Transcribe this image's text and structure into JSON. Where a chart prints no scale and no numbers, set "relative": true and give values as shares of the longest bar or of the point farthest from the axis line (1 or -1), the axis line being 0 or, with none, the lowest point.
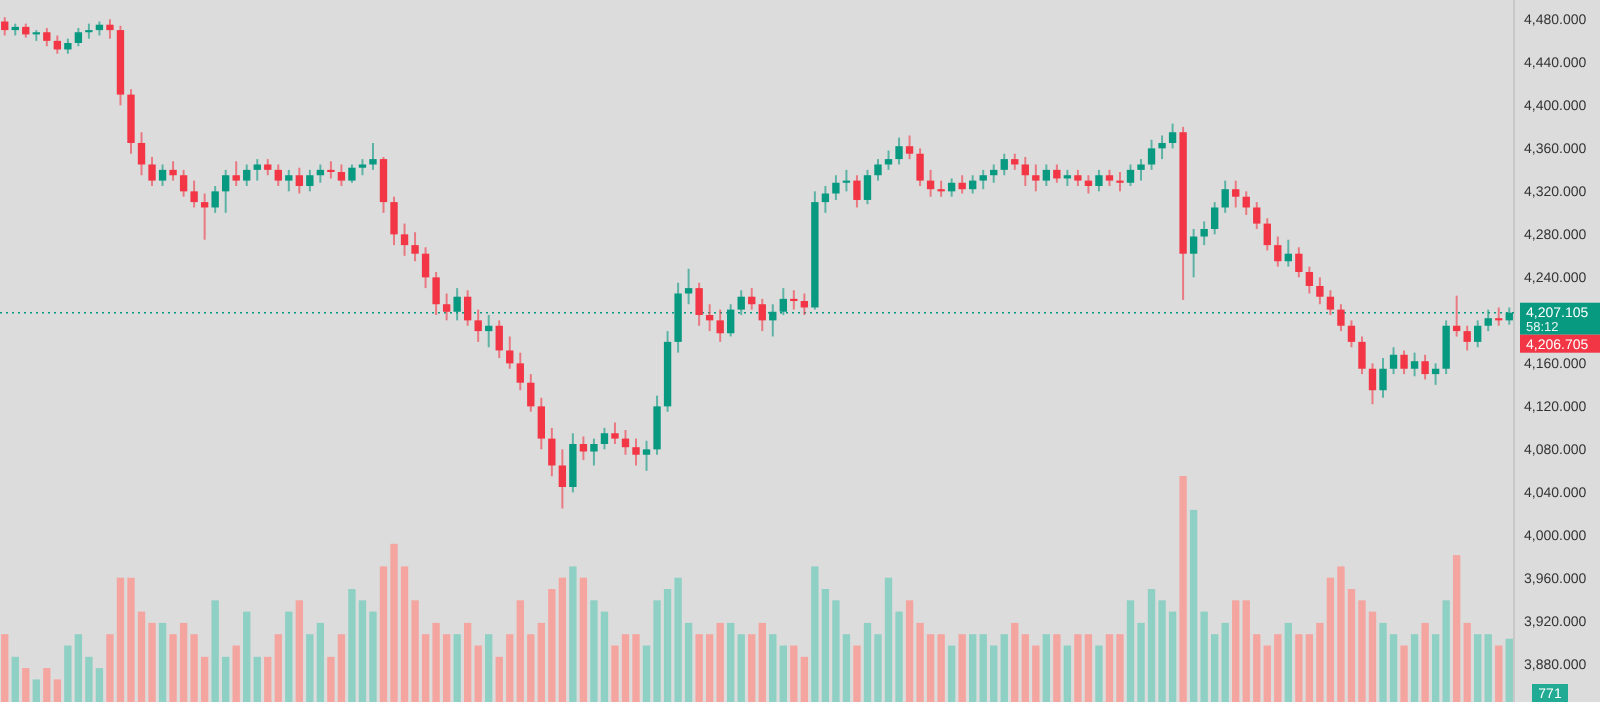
{
  "chart_data": [
    {
      "type": "candlestick",
      "categories": [
        null,
        null,
        null,
        null,
        null,
        null,
        null,
        null,
        null,
        null,
        null,
        null,
        null,
        null,
        null,
        null,
        null,
        null,
        null,
        null,
        null,
        null,
        null,
        null,
        null,
        null,
        null,
        null,
        null,
        null,
        null,
        null,
        null,
        null,
        null,
        null,
        null,
        null,
        null,
        null,
        null,
        null,
        null,
        null,
        null,
        null,
        null,
        null,
        null,
        null,
        null,
        null,
        null,
        null,
        null,
        null,
        null,
        null,
        null,
        null,
        null,
        null,
        null,
        null,
        null,
        null,
        null,
        null,
        null,
        null,
        null,
        null,
        null,
        null,
        null,
        null,
        null,
        null,
        null,
        null,
        null,
        null,
        null,
        null,
        null,
        null,
        null,
        null,
        null,
        null,
        null,
        null,
        null,
        null,
        null,
        null,
        null,
        null,
        null,
        null,
        null,
        null,
        null,
        null,
        null,
        null,
        null,
        null,
        null,
        null,
        null,
        null,
        null,
        null,
        null,
        null,
        null,
        null,
        null,
        null,
        null,
        null,
        null,
        null,
        null,
        null,
        null,
        null,
        null,
        null,
        null,
        null,
        null,
        null,
        null,
        null,
        null,
        null,
        null,
        null,
        null,
        null,
        null,
        null
      ],
      "colors": [
        "#f23645",
        "#089981",
        "#f23645",
        "#089981",
        "#f23645",
        "#f23645",
        "#089981",
        "#089981",
        "#089981",
        "#089981",
        "#f23645",
        "#f23645",
        "#f23645",
        "#f23645",
        "#f23645",
        "#089981",
        "#f23645",
        "#f23645",
        "#f23645",
        "#f23645",
        "#089981",
        "#089981",
        "#f23645",
        "#089981",
        "#089981",
        "#f23645",
        "#f23645",
        "#089981",
        "#f23645",
        "#089981",
        "#089981",
        "#f23645",
        "#f23645",
        "#089981",
        "#089981",
        "#089981",
        "#f23645",
        "#f23645",
        "#f23645",
        "#f23645",
        "#f23645",
        "#f23645",
        "#f23645",
        "#089981",
        "#f23645",
        "#f23645",
        "#089981",
        "#f23645",
        "#f23645",
        "#f23645",
        "#f23645",
        "#f23645",
        "#f23645",
        "#f23645",
        "#089981",
        "#f23645",
        "#089981",
        "#089981",
        "#f23645",
        "#f23645",
        "#f23645",
        "#089981",
        "#089981",
        "#089981",
        "#089981",
        "#089981",
        "#f23645",
        "#f23645",
        "#f23645",
        "#089981",
        "#089981",
        "#f23645",
        "#f23645",
        "#089981",
        "#089981",
        "#f23645",
        "#f23645",
        "#089981",
        "#089981",
        "#089981",
        "#089981",
        "#f23645",
        "#089981",
        "#089981",
        "#089981",
        "#089981",
        "#f23645",
        "#f23645",
        "#f23645",
        "#f23645",
        "#089981",
        "#f23645",
        "#089981",
        "#089981",
        "#089981",
        "#089981",
        "#f23645",
        "#f23645",
        "#f23645",
        "#089981",
        "#f23645",
        "#089981",
        "#f23645",
        "#f23645",
        "#089981",
        "#f23645",
        "#f23645",
        "#089981",
        "#089981",
        "#089981",
        "#089981",
        "#089981",
        "#f23645",
        "#089981",
        "#089981",
        "#089981",
        "#089981",
        "#f23645",
        "#f23645",
        "#f23645",
        "#f23645",
        "#f23645",
        "#089981",
        "#f23645",
        "#f23645",
        "#f23645",
        "#f23645",
        "#f23645",
        "#f23645",
        "#f23645",
        "#f23645",
        "#089981",
        "#089981",
        "#f23645",
        "#089981",
        "#f23645",
        "#089981",
        "#089981",
        "#f23645",
        "#f23645",
        "#089981",
        "#089981",
        "#f23645",
        "#089981"
      ],
      "ohlc": [
        [
          4478,
          4482,
          4465,
          4470
        ],
        [
          4470,
          4476,
          4465,
          4473
        ],
        [
          4473,
          4476,
          4463,
          4466
        ],
        [
          4466,
          4470,
          4460,
          4468
        ],
        [
          4468,
          4472,
          4455,
          4460
        ],
        [
          4460,
          4465,
          4448,
          4452
        ],
        [
          4452,
          4462,
          4448,
          4458
        ],
        [
          4458,
          4472,
          4455,
          4468
        ],
        [
          4468,
          4476,
          4462,
          4470
        ],
        [
          4470,
          4478,
          4465,
          4475
        ],
        [
          4475,
          4480,
          4462,
          4470
        ],
        [
          4470,
          4474,
          4400,
          4410
        ],
        [
          4410,
          4415,
          4355,
          4365
        ],
        [
          4365,
          4375,
          4335,
          4345
        ],
        [
          4345,
          4352,
          4325,
          4330
        ],
        [
          4330,
          4345,
          4325,
          4340
        ],
        [
          4340,
          4348,
          4330,
          4335
        ],
        [
          4335,
          4340,
          4315,
          4320
        ],
        [
          4320,
          4330,
          4305,
          4310
        ],
        [
          4310,
          4318,
          4275,
          4305
        ],
        [
          4305,
          4325,
          4300,
          4320
        ],
        [
          4320,
          4340,
          4300,
          4335
        ],
        [
          4335,
          4348,
          4325,
          4330
        ],
        [
          4330,
          4345,
          4325,
          4340
        ],
        [
          4340,
          4350,
          4330,
          4345
        ],
        [
          4345,
          4350,
          4335,
          4340
        ],
        [
          4340,
          4345,
          4325,
          4330
        ],
        [
          4330,
          4340,
          4320,
          4335
        ],
        [
          4335,
          4342,
          4318,
          4325
        ],
        [
          4325,
          4340,
          4320,
          4335
        ],
        [
          4335,
          4345,
          4328,
          4340
        ],
        [
          4340,
          4348,
          4332,
          4338
        ],
        [
          4338,
          4345,
          4325,
          4330
        ],
        [
          4330,
          4345,
          4328,
          4342
        ],
        [
          4342,
          4350,
          4335,
          4345
        ],
        [
          4345,
          4365,
          4340,
          4350
        ],
        [
          4350,
          4352,
          4300,
          4310
        ],
        [
          4310,
          4315,
          4270,
          4280
        ],
        [
          4280,
          4290,
          4260,
          4270
        ],
        [
          4270,
          4282,
          4255,
          4262
        ],
        [
          4262,
          4268,
          4230,
          4240
        ],
        [
          4240,
          4245,
          4205,
          4215
        ],
        [
          4215,
          4225,
          4200,
          4208
        ],
        [
          4208,
          4230,
          4200,
          4222
        ],
        [
          4222,
          4228,
          4195,
          4200
        ],
        [
          4200,
          4210,
          4180,
          4190
        ],
        [
          4190,
          4205,
          4175,
          4195
        ],
        [
          4195,
          4200,
          4165,
          4172
        ],
        [
          4172,
          4185,
          4155,
          4160
        ],
        [
          4160,
          4170,
          4135,
          4142
        ],
        [
          4142,
          4150,
          4115,
          4120
        ],
        [
          4120,
          4128,
          4080,
          4090
        ],
        [
          4090,
          4100,
          4055,
          4065
        ],
        [
          4065,
          4080,
          4025,
          4045
        ],
        [
          4045,
          4095,
          4040,
          4085
        ],
        [
          4085,
          4092,
          4070,
          4078
        ],
        [
          4078,
          4090,
          4065,
          4085
        ],
        [
          4085,
          4100,
          4080,
          4095
        ],
        [
          4095,
          4105,
          4085,
          4090
        ],
        [
          4090,
          4098,
          4075,
          4082
        ],
        [
          4082,
          4090,
          4065,
          4075
        ],
        [
          4075,
          4088,
          4060,
          4080
        ],
        [
          4080,
          4130,
          4075,
          4120
        ],
        [
          4120,
          4190,
          4115,
          4180
        ],
        [
          4180,
          4235,
          4170,
          4225
        ],
        [
          4225,
          4248,
          4215,
          4230
        ],
        [
          4230,
          4235,
          4195,
          4205
        ],
        [
          4205,
          4215,
          4190,
          4200
        ],
        [
          4200,
          4210,
          4180,
          4188
        ],
        [
          4188,
          4215,
          4185,
          4210
        ],
        [
          4210,
          4228,
          4205,
          4222
        ],
        [
          4222,
          4230,
          4210,
          4215
        ],
        [
          4215,
          4220,
          4190,
          4200
        ],
        [
          4200,
          4215,
          4185,
          4208
        ],
        [
          4208,
          4230,
          4205,
          4220
        ],
        [
          4220,
          4228,
          4210,
          4218
        ],
        [
          4218,
          4225,
          4205,
          4212
        ],
        [
          4212,
          4320,
          4210,
          4310
        ],
        [
          4310,
          4325,
          4300,
          4318
        ],
        [
          4318,
          4335,
          4312,
          4328
        ],
        [
          4328,
          4340,
          4320,
          4330
        ],
        [
          4330,
          4335,
          4305,
          4312
        ],
        [
          4312,
          4340,
          4308,
          4335
        ],
        [
          4335,
          4350,
          4330,
          4345
        ],
        [
          4345,
          4358,
          4340,
          4350
        ],
        [
          4350,
          4370,
          4345,
          4362
        ],
        [
          4362,
          4372,
          4350,
          4355
        ],
        [
          4355,
          4360,
          4325,
          4330
        ],
        [
          4330,
          4340,
          4315,
          4322
        ],
        [
          4322,
          4330,
          4315,
          4320
        ],
        [
          4320,
          4332,
          4315,
          4328
        ],
        [
          4328,
          4335,
          4318,
          4322
        ],
        [
          4322,
          4335,
          4318,
          4330
        ],
        [
          4330,
          4340,
          4322,
          4335
        ],
        [
          4335,
          4345,
          4328,
          4340
        ],
        [
          4340,
          4355,
          4335,
          4350
        ],
        [
          4350,
          4355,
          4340,
          4345
        ],
        [
          4345,
          4352,
          4325,
          4335
        ],
        [
          4335,
          4345,
          4320,
          4330
        ],
        [
          4330,
          4345,
          4325,
          4340
        ],
        [
          4340,
          4345,
          4328,
          4332
        ],
        [
          4332,
          4340,
          4325,
          4335
        ],
        [
          4335,
          4340,
          4325,
          4330
        ],
        [
          4330,
          4335,
          4318,
          4325
        ],
        [
          4325,
          4340,
          4320,
          4335
        ],
        [
          4335,
          4340,
          4325,
          4330
        ],
        [
          4330,
          4338,
          4320,
          4328
        ],
        [
          4328,
          4345,
          4325,
          4340
        ],
        [
          4340,
          4350,
          4330,
          4345
        ],
        [
          4345,
          4368,
          4340,
          4360
        ],
        [
          4360,
          4372,
          4350,
          4365
        ],
        [
          4365,
          4383,
          4360,
          4375
        ],
        [
          4375,
          4380,
          4219,
          4262
        ],
        [
          4262,
          4285,
          4240,
          4278
        ],
        [
          4278,
          4292,
          4270,
          4285
        ],
        [
          4285,
          4310,
          4280,
          4305
        ],
        [
          4305,
          4330,
          4300,
          4322
        ],
        [
          4322,
          4330,
          4305,
          4315
        ],
        [
          4315,
          4320,
          4298,
          4305
        ],
        [
          4305,
          4310,
          4285,
          4290
        ],
        [
          4290,
          4295,
          4265,
          4270
        ],
        [
          4270,
          4278,
          4250,
          4255
        ],
        [
          4255,
          4275,
          4250,
          4262
        ],
        [
          4262,
          4268,
          4240,
          4245
        ],
        [
          4245,
          4250,
          4225,
          4232
        ],
        [
          4232,
          4240,
          4215,
          4222
        ],
        [
          4222,
          4228,
          4205,
          4210
        ],
        [
          4210,
          4215,
          4190,
          4195
        ],
        [
          4195,
          4200,
          4175,
          4180
        ],
        [
          4180,
          4185,
          4150,
          4155
        ],
        [
          4155,
          4160,
          4122,
          4135
        ],
        [
          4135,
          4165,
          4128,
          4155
        ],
        [
          4155,
          4175,
          4150,
          4168
        ],
        [
          4168,
          4172,
          4150,
          4155
        ],
        [
          4155,
          4170,
          4148,
          4162
        ],
        [
          4162,
          4168,
          4145,
          4150
        ],
        [
          4150,
          4160,
          4140,
          4155
        ],
        [
          4155,
          4200,
          4150,
          4195
        ],
        [
          4195,
          4223,
          4185,
          4190
        ],
        [
          4190,
          4195,
          4172,
          4180
        ],
        [
          4180,
          4200,
          4175,
          4195
        ],
        [
          4195,
          4210,
          4190,
          4202
        ],
        [
          4202,
          4212,
          4195,
          4200
        ],
        [
          4200,
          4212,
          4196,
          4207.105
        ]
      ],
      "ylim": [
        3845,
        4498
      ],
      "yticks": [
        {
          "value": 3880,
          "label": "3,880.000"
        },
        {
          "value": 3920,
          "label": "3,920.000"
        },
        {
          "value": 3960,
          "label": "3,960.000"
        },
        {
          "value": 4000,
          "label": "4,000.000"
        },
        {
          "value": 4040,
          "label": "4,040.000"
        },
        {
          "value": 4080,
          "label": "4,080.000"
        },
        {
          "value": 4120,
          "label": "4,120.000"
        },
        {
          "value": 4160,
          "label": "4,160.000"
        },
        {
          "value": 4240,
          "label": "4,240.000"
        },
        {
          "value": 4280,
          "label": "4,280.000"
        },
        {
          "value": 4320,
          "label": "4,320.000"
        },
        {
          "value": 4360,
          "label": "4,360.000"
        },
        {
          "value": 4400,
          "label": "4,400.000"
        },
        {
          "value": 4440,
          "label": "4,440.000"
        },
        {
          "value": 4480,
          "label": "4,480.000"
        }
      ],
      "ref_lines": [
        {
          "axis": "y",
          "value": 4207.105,
          "label": "4,207.105",
          "color": "#089981",
          "line_style": "dotted"
        }
      ],
      "annotations": [
        "58:12",
        "4,206.705"
      ]
    },
    {
      "type": "bar",
      "relative": true,
      "categories": [
        null,
        null,
        null,
        null,
        null,
        null,
        null,
        null,
        null,
        null,
        null,
        null,
        null,
        null,
        null,
        null,
        null,
        null,
        null,
        null,
        null,
        null,
        null,
        null,
        null,
        null,
        null,
        null,
        null,
        null,
        null,
        null,
        null,
        null,
        null,
        null,
        null,
        null,
        null,
        null,
        null,
        null,
        null,
        null,
        null,
        null,
        null,
        null,
        null,
        null,
        null,
        null,
        null,
        null,
        null,
        null,
        null,
        null,
        null,
        null,
        null,
        null,
        null,
        null,
        null,
        null,
        null,
        null,
        null,
        null,
        null,
        null,
        null,
        null,
        null,
        null,
        null,
        null,
        null,
        null,
        null,
        null,
        null,
        null,
        null,
        null,
        null,
        null,
        null,
        null,
        null,
        null,
        null,
        null,
        null,
        null,
        null,
        null,
        null,
        null,
        null,
        null,
        null,
        null,
        null,
        null,
        null,
        null,
        null,
        null,
        null,
        null,
        null,
        null,
        null,
        null,
        null,
        null,
        null,
        null,
        null,
        null,
        null,
        null,
        null,
        null,
        null,
        null,
        null,
        null,
        null,
        null,
        null,
        null,
        null,
        null,
        null,
        null,
        null,
        null,
        null,
        null,
        null,
        null
      ],
      "values": [
        0.3,
        0.2,
        0.15,
        0.1,
        0.15,
        0.1,
        0.25,
        0.3,
        0.2,
        0.15,
        0.3,
        0.55,
        0.55,
        0.4,
        0.35,
        0.35,
        0.3,
        0.35,
        0.3,
        0.2,
        0.45,
        0.2,
        0.25,
        0.4,
        0.2,
        0.2,
        0.3,
        0.4,
        0.45,
        0.3,
        0.35,
        0.2,
        0.3,
        0.5,
        0.45,
        0.4,
        0.6,
        0.7,
        0.6,
        0.45,
        0.3,
        0.35,
        0.3,
        0.3,
        0.35,
        0.25,
        0.3,
        0.2,
        0.3,
        0.45,
        0.3,
        0.35,
        0.5,
        0.55,
        0.6,
        0.55,
        0.45,
        0.4,
        0.25,
        0.3,
        0.3,
        0.25,
        0.45,
        0.5,
        0.55,
        0.35,
        0.3,
        0.3,
        0.35,
        0.35,
        0.3,
        0.3,
        0.35,
        0.3,
        0.25,
        0.25,
        0.2,
        0.6,
        0.5,
        0.45,
        0.3,
        0.25,
        0.35,
        0.3,
        0.55,
        0.4,
        0.45,
        0.35,
        0.3,
        0.3,
        0.25,
        0.3,
        0.3,
        0.3,
        0.25,
        0.3,
        0.35,
        0.3,
        0.25,
        0.3,
        0.3,
        0.25,
        0.3,
        0.3,
        0.25,
        0.3,
        0.3,
        0.45,
        0.35,
        0.5,
        0.45,
        0.4,
        1,
        0.85,
        0.4,
        0.3,
        0.35,
        0.45,
        0.45,
        0.3,
        0.25,
        0.3,
        0.35,
        0.3,
        0.3,
        0.35,
        0.55,
        0.6,
        0.5,
        0.45,
        0.4,
        0.35,
        0.3,
        0.25,
        0.3,
        0.35,
        0.3,
        0.45,
        0.65,
        0.35,
        0.3,
        0.3,
        0.25,
        0.28
      ],
      "colors": [
        "#f5a5a0",
        "#8fd0c4",
        "#f5a5a0",
        "#8fd0c4",
        "#f5a5a0",
        "#f5a5a0",
        "#8fd0c4",
        "#8fd0c4",
        "#8fd0c4",
        "#8fd0c4",
        "#f5a5a0",
        "#f5a5a0",
        "#f5a5a0",
        "#f5a5a0",
        "#f5a5a0",
        "#8fd0c4",
        "#f5a5a0",
        "#f5a5a0",
        "#f5a5a0",
        "#f5a5a0",
        "#8fd0c4",
        "#8fd0c4",
        "#f5a5a0",
        "#8fd0c4",
        "#8fd0c4",
        "#f5a5a0",
        "#f5a5a0",
        "#8fd0c4",
        "#f5a5a0",
        "#8fd0c4",
        "#8fd0c4",
        "#f5a5a0",
        "#f5a5a0",
        "#8fd0c4",
        "#8fd0c4",
        "#8fd0c4",
        "#f5a5a0",
        "#f5a5a0",
        "#f5a5a0",
        "#f5a5a0",
        "#f5a5a0",
        "#f5a5a0",
        "#f5a5a0",
        "#8fd0c4",
        "#f5a5a0",
        "#f5a5a0",
        "#8fd0c4",
        "#f5a5a0",
        "#f5a5a0",
        "#f5a5a0",
        "#f5a5a0",
        "#f5a5a0",
        "#f5a5a0",
        "#f5a5a0",
        "#8fd0c4",
        "#f5a5a0",
        "#8fd0c4",
        "#8fd0c4",
        "#f5a5a0",
        "#f5a5a0",
        "#f5a5a0",
        "#8fd0c4",
        "#8fd0c4",
        "#8fd0c4",
        "#8fd0c4",
        "#8fd0c4",
        "#f5a5a0",
        "#f5a5a0",
        "#f5a5a0",
        "#8fd0c4",
        "#8fd0c4",
        "#f5a5a0",
        "#f5a5a0",
        "#8fd0c4",
        "#8fd0c4",
        "#f5a5a0",
        "#f5a5a0",
        "#8fd0c4",
        "#8fd0c4",
        "#8fd0c4",
        "#8fd0c4",
        "#f5a5a0",
        "#8fd0c4",
        "#8fd0c4",
        "#8fd0c4",
        "#8fd0c4",
        "#f5a5a0",
        "#f5a5a0",
        "#f5a5a0",
        "#f5a5a0",
        "#8fd0c4",
        "#f5a5a0",
        "#8fd0c4",
        "#8fd0c4",
        "#8fd0c4",
        "#8fd0c4",
        "#f5a5a0",
        "#f5a5a0",
        "#f5a5a0",
        "#8fd0c4",
        "#f5a5a0",
        "#8fd0c4",
        "#f5a5a0",
        "#f5a5a0",
        "#8fd0c4",
        "#f5a5a0",
        "#f5a5a0",
        "#8fd0c4",
        "#8fd0c4",
        "#8fd0c4",
        "#8fd0c4",
        "#8fd0c4",
        "#f5a5a0",
        "#8fd0c4",
        "#8fd0c4",
        "#8fd0c4",
        "#8fd0c4",
        "#f5a5a0",
        "#f5a5a0",
        "#f5a5a0",
        "#f5a5a0",
        "#f5a5a0",
        "#8fd0c4",
        "#f5a5a0",
        "#f5a5a0",
        "#f5a5a0",
        "#f5a5a0",
        "#f5a5a0",
        "#f5a5a0",
        "#f5a5a0",
        "#f5a5a0",
        "#8fd0c4",
        "#8fd0c4",
        "#f5a5a0",
        "#8fd0c4",
        "#f5a5a0",
        "#8fd0c4",
        "#8fd0c4",
        "#f5a5a0",
        "#f5a5a0",
        "#8fd0c4",
        "#8fd0c4",
        "#f5a5a0",
        "#8fd0c4"
      ],
      "annotations": [
        "771"
      ]
    }
  ]
}
